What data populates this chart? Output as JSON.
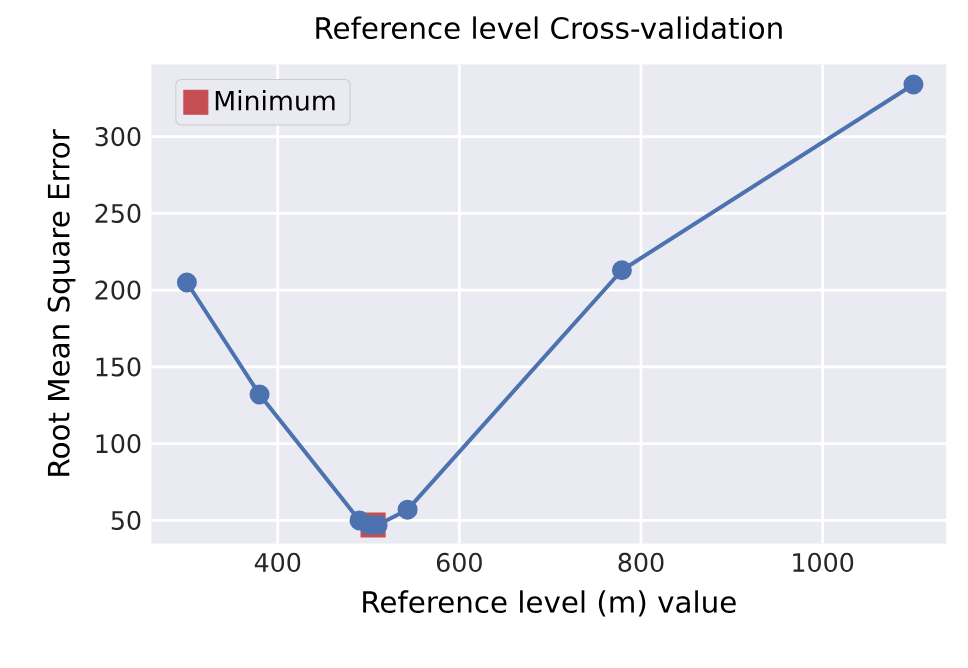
{
  "chart_data": {
    "type": "line",
    "title": "Reference level Cross-validation",
    "xlabel": "Reference level (m) value",
    "ylabel": "Root Mean Square Error",
    "xlim": [
      261,
      1136
    ],
    "ylim": [
      35,
      347
    ],
    "xticks": [
      400,
      600,
      800,
      1000
    ],
    "yticks": [
      50,
      100,
      150,
      200,
      250,
      300
    ],
    "grid": true,
    "legend": "top left",
    "series": [
      {
        "type": "scatter",
        "name": "Minimum",
        "color": "#c44e52",
        "marker": "square",
        "x": [
          505
        ],
        "values": [
          47
        ]
      },
      {
        "color": "#4c72b0",
        "marker": "circle",
        "x": [
          300,
          380,
          490,
          500,
          510,
          543,
          779,
          1100
        ],
        "values": [
          205,
          132,
          50,
          47,
          47,
          57,
          213,
          334
        ]
      }
    ]
  }
}
